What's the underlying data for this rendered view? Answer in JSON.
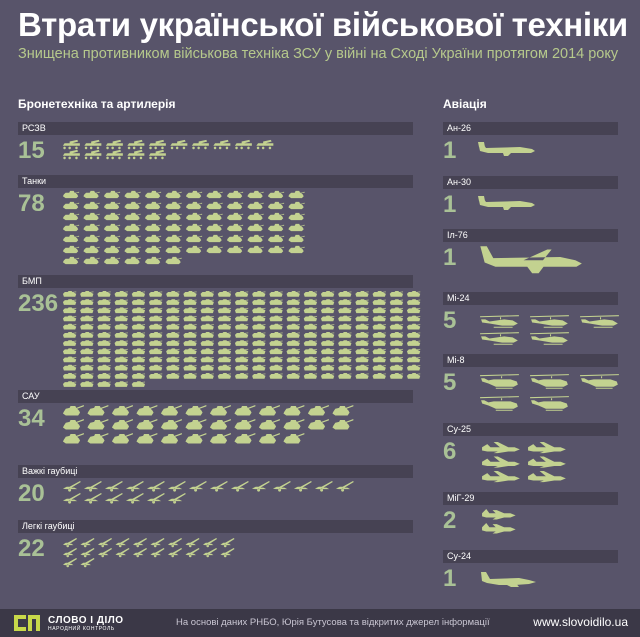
{
  "header": {
    "title": "Втрати української військової техніки",
    "subtitle": "Знищена противником військова техніка ЗСУ у війні на Сході України протягом 2014 року"
  },
  "sections": {
    "ground": "Бронетехніка та артилерія",
    "air": "Авіація"
  },
  "colors": {
    "background": "#58546a",
    "icon": "#c3d290",
    "count": "#a9c196",
    "bar": "#464253",
    "footer": "#3b3847"
  },
  "chart_data": {
    "type": "table",
    "ground": [
      {
        "label": "РСЗВ",
        "value": 15,
        "icon": "mlrs-icon"
      },
      {
        "label": "Танки",
        "value": 78,
        "icon": "tank-icon"
      },
      {
        "label": "БМП",
        "value": 236,
        "icon": "ifv-icon"
      },
      {
        "label": "САУ",
        "value": 34,
        "icon": "spg-icon"
      },
      {
        "label": "Важкі гаубиці",
        "value": 20,
        "icon": "heavy-howitzer-icon"
      },
      {
        "label": "Легкі гаубиці",
        "value": 22,
        "icon": "light-howitzer-icon"
      }
    ],
    "air": [
      {
        "label": "Ан-26",
        "value": 1,
        "icon": "transport-plane-icon"
      },
      {
        "label": "Ан-30",
        "value": 1,
        "icon": "transport-plane-icon"
      },
      {
        "label": "Іл-76",
        "value": 1,
        "icon": "heavy-transport-plane-icon"
      },
      {
        "label": "Мі-24",
        "value": 5,
        "icon": "attack-helicopter-icon"
      },
      {
        "label": "Мі-8",
        "value": 5,
        "icon": "transport-helicopter-icon"
      },
      {
        "label": "Су-25",
        "value": 6,
        "icon": "attack-jet-icon"
      },
      {
        "label": "МіГ-29",
        "value": 2,
        "icon": "fighter-jet-icon"
      },
      {
        "label": "Су-24",
        "value": 1,
        "icon": "bomber-jet-icon"
      }
    ]
  },
  "footer": {
    "logo_text": "СЛОВО І ДІЛО",
    "logo_sub": "НАРОДНИЙ КОНТРОЛЬ",
    "source": "На основі даних РНБО, Юрія Бутусова та відкритих джерел інформації",
    "site": "www.slovoidilo.ua"
  }
}
